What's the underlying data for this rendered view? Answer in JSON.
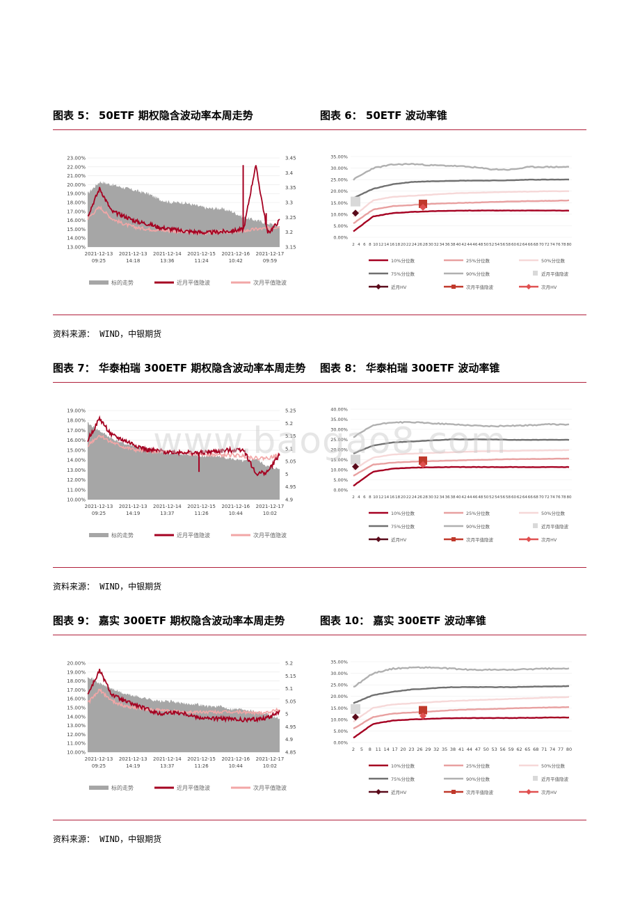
{
  "sections": [
    {
      "left_title": "图表 5：  50ETF 期权隐含波动率本周走势",
      "right_title": "图表 6：  50ETF 波动率锥",
      "source": "资料来源：  WIND，中银期货"
    },
    {
      "left_title": "图表 7：  华泰柏瑞 300ETF 期权隐含波动率本周走势",
      "right_title": "图表 8：  华泰柏瑞 300ETF 波动率锥",
      "source": "资料来源：  WIND，中银期货"
    },
    {
      "left_title": "图表 9：  嘉实 300ETF 期权隐含波动率本周走势",
      "right_title": "图表 10：  嘉实 300ETF 波动率锥",
      "source": "资料来源：  WIND，中银期货"
    }
  ],
  "watermark": "www.baogao8.com",
  "colors": {
    "rule": "#b01e3a",
    "underlying": "#a6a6a6",
    "near_iv": "#a50021",
    "next_iv": "#f2a6a6",
    "p10": "#a50021",
    "p25": "#e8a0a0",
    "p50": "#f6d8d8",
    "p75": "#707070",
    "p90": "#b0b0b0",
    "near_hv": "#5a0a1a",
    "next_atm": "#c0392b"
  },
  "chart_data": [
    {
      "type": "line",
      "x_ticks": [
        [
          "2021-12-13",
          "09:25"
        ],
        [
          "2021-12-13",
          "14:18"
        ],
        [
          "2021-12-14",
          "13:36"
        ],
        [
          "2021-12-15",
          "11:24"
        ],
        [
          "2021-12-16",
          "10:42"
        ],
        [
          "2021-12-17",
          "09:59"
        ]
      ],
      "y_left": {
        "ticks": [
          "13.00%",
          "14.00%",
          "15.00%",
          "16.00%",
          "17.00%",
          "18.00%",
          "19.00%",
          "20.00%",
          "21.00%",
          "22.00%",
          "23.00%"
        ],
        "min": 13,
        "max": 23
      },
      "y_right": {
        "ticks": [
          "3.15",
          "3.2",
          "3.25",
          "3.3",
          "3.35",
          "3.4",
          "3.45"
        ],
        "min": 3.15,
        "max": 3.45
      },
      "legend": [
        "标的走势",
        "近月平值隐波",
        "次月平值隐波"
      ],
      "underlying": [
        3.33,
        3.37,
        3.36,
        3.35,
        3.34,
        3.33,
        3.31,
        3.3,
        3.3,
        3.29,
        3.28,
        3.28,
        3.27,
        3.25,
        3.24,
        3.23,
        3.22
      ],
      "near_iv": [
        16.5,
        19.6,
        17.0,
        16.5,
        15.9,
        15.6,
        15.2,
        15.0,
        14.8,
        14.7,
        14.6,
        14.7,
        14.8,
        15.0,
        22.2,
        14.5,
        16.0
      ],
      "next_iv": [
        16.2,
        17.5,
        16.2,
        15.6,
        15.2,
        15.0,
        14.9,
        14.8,
        14.7,
        14.6,
        14.6,
        14.7,
        14.7,
        14.8,
        15.0,
        15.1,
        15.3
      ],
      "spikes": [
        {
          "pos": 0.81,
          "value": 22.2
        },
        {
          "pos": 0.93,
          "value": 16.8
        }
      ]
    },
    {
      "type": "line",
      "x_ticks": [
        "2",
        "4",
        "6",
        "8",
        "10",
        "12",
        "14",
        "16",
        "18",
        "20",
        "22",
        "24",
        "26",
        "28",
        "30",
        "32",
        "34",
        "36",
        "38",
        "40",
        "42",
        "44",
        "46",
        "48",
        "50",
        "52",
        "54",
        "56",
        "58",
        "60",
        "62",
        "64",
        "66",
        "68",
        "70",
        "72",
        "74",
        "76",
        "78",
        "80"
      ],
      "y": {
        "ticks": [
          "0.00%",
          "5.00%",
          "10.00%",
          "15.00%",
          "20.00%",
          "25.00%",
          "30.00%",
          "35.00%"
        ],
        "min": 0,
        "max": 35
      },
      "legend": [
        "10%分位数",
        "25%分位数",
        "50%分位数",
        "75%分位数",
        "90%分位数",
        "近月平值隐波",
        "近月HV",
        "次月平值隐波",
        "次月HV"
      ],
      "percentiles": {
        "p10": [
          2.5,
          9,
          10.5,
          11.0,
          11.3,
          11.5,
          11.6,
          11.6,
          11.6,
          11.6,
          11.6,
          11.6
        ],
        "p25": [
          6,
          12,
          13.5,
          14.0,
          14.5,
          14.8,
          15.0,
          15.3,
          15.5,
          15.7,
          15.8,
          16.0
        ],
        "p50": [
          9,
          16,
          17.5,
          18.0,
          18.5,
          19.0,
          19.3,
          19.5,
          19.7,
          19.8,
          20.0,
          20.0
        ],
        "p75": [
          17,
          21,
          23,
          24,
          24.3,
          24.5,
          24.6,
          24.6,
          24.7,
          25.0,
          25.0,
          25.0
        ],
        "p90": [
          25,
          30,
          31.5,
          31.8,
          31.2,
          31.0,
          30.5,
          29.5,
          29.3,
          30.5,
          30.5,
          30.5
        ]
      },
      "near_atm": 15.5,
      "near_hv": 10.5,
      "next_atm": 14.5,
      "next_hv": 13.0
    },
    {
      "type": "line",
      "x_ticks": [
        [
          "2021-12-13",
          "09:25"
        ],
        [
          "2021-12-13",
          "14:19"
        ],
        [
          "2021-12-14",
          "13:37"
        ],
        [
          "2021-12-15",
          "11:26"
        ],
        [
          "2021-12-16",
          "10:44"
        ],
        [
          "2021-12-17",
          "10:02"
        ]
      ],
      "y_left": {
        "ticks": [
          "10.00%",
          "11.00%",
          "12.00%",
          "13.00%",
          "14.00%",
          "15.00%",
          "16.00%",
          "17.00%",
          "18.00%",
          "19.00%"
        ],
        "min": 10,
        "max": 19
      },
      "y_right": {
        "ticks": [
          "4.9",
          "4.95",
          "5",
          "5.05",
          "5.1",
          "5.15",
          "5.2",
          "5.25"
        ],
        "min": 4.9,
        "max": 5.25
      },
      "legend": [
        "标的走势",
        "近月平值隐波",
        "次月平值隐波"
      ],
      "underlying": [
        5.2,
        5.17,
        5.14,
        5.12,
        5.11,
        5.1,
        5.09,
        5.08,
        5.08,
        5.07,
        5.07,
        5.07,
        5.06,
        5.05,
        5.06,
        5.03,
        5.02
      ],
      "near_iv": [
        16.0,
        18.2,
        16.5,
        16.0,
        15.5,
        15.0,
        14.9,
        14.8,
        14.8,
        14.7,
        14.8,
        14.9,
        15.0,
        15.1,
        12.6,
        12.8,
        14.6
      ],
      "next_iv": [
        15.5,
        16.5,
        15.8,
        15.3,
        15.0,
        14.9,
        14.8,
        14.8,
        14.7,
        14.6,
        14.6,
        14.5,
        14.5,
        14.4,
        14.2,
        14.2,
        14.5
      ],
      "spikes": [
        {
          "pos": 0.58,
          "value": 12.8
        }
      ]
    },
    {
      "type": "line",
      "x_ticks": [
        "2",
        "4",
        "6",
        "8",
        "10",
        "12",
        "14",
        "16",
        "18",
        "20",
        "22",
        "24",
        "26",
        "28",
        "30",
        "32",
        "34",
        "36",
        "38",
        "40",
        "42",
        "44",
        "46",
        "48",
        "50",
        "52",
        "54",
        "56",
        "58",
        "60",
        "62",
        "64",
        "66",
        "68",
        "70",
        "72",
        "74",
        "76",
        "78",
        "80"
      ],
      "y": {
        "ticks": [
          "0.00%",
          "5.00%",
          "10.00%",
          "15.00%",
          "20.00%",
          "25.00%",
          "30.00%",
          "35.00%",
          "40.00%"
        ],
        "min": 0,
        "max": 40
      },
      "legend": [
        "10%分位数",
        "25%分位数",
        "50%分位数",
        "75%分位数",
        "90%分位数",
        "近月平值隐波",
        "近月HV",
        "次月平值隐波",
        "次月HV"
      ],
      "percentiles": {
        "p10": [
          2,
          9,
          10.5,
          11,
          11.2,
          11.3,
          11.3,
          11.3,
          11.3,
          11.3,
          11.3,
          11.3
        ],
        "p25": [
          7,
          12.5,
          13.5,
          14,
          14.3,
          14.5,
          14.8,
          15,
          15.2,
          15.3,
          15.4,
          15.5
        ],
        "p50": [
          10,
          16,
          17.5,
          18,
          18.3,
          18.6,
          19,
          19.2,
          19.3,
          19.5,
          19.6,
          19.7
        ],
        "p75": [
          18,
          22,
          23.5,
          24,
          24.5,
          25,
          25,
          25,
          24.8,
          24.8,
          24.8,
          24.8
        ],
        "p90": [
          26,
          32,
          33.5,
          33.5,
          33.0,
          32.5,
          32.0,
          31.5,
          31.8,
          32.0,
          32.5,
          32.3
        ]
      },
      "near_atm": 15,
      "near_hv": 11.5,
      "next_atm": 14.5,
      "next_hv": 12.5
    },
    {
      "type": "line",
      "x_ticks": [
        [
          "2021-12-13",
          "09:25"
        ],
        [
          "2021-12-13",
          "14:19"
        ],
        [
          "2021-12-14",
          "13:37"
        ],
        [
          "2021-12-15",
          "11:26"
        ],
        [
          "2021-12-16",
          "10:44"
        ],
        [
          "2021-12-17",
          "10:02"
        ]
      ],
      "y_left": {
        "ticks": [
          "10.00%",
          "11.00%",
          "12.00%",
          "13.00%",
          "14.00%",
          "15.00%",
          "16.00%",
          "17.00%",
          "18.00%",
          "19.00%",
          "20.00%"
        ],
        "min": 10,
        "max": 20
      },
      "y_right": {
        "ticks": [
          "4.85",
          "4.9",
          "4.95",
          "5",
          "5.05",
          "5.1",
          "5.15",
          "5.2"
        ],
        "min": 4.85,
        "max": 5.2
      },
      "legend": [
        "标的走势",
        "近月平值隐波",
        "次月平值隐波"
      ],
      "underlying": [
        5.15,
        5.12,
        5.1,
        5.08,
        5.07,
        5.06,
        5.05,
        5.05,
        5.04,
        5.04,
        5.03,
        5.03,
        5.02,
        5.02,
        5.01,
        5.0,
        4.98
      ],
      "near_iv": [
        16.5,
        19.2,
        16.5,
        15.8,
        15.3,
        14.8,
        14.3,
        14.5,
        14.4,
        14.0,
        13.8,
        13.8,
        13.7,
        13.6,
        13.7,
        13.9,
        14.5
      ],
      "next_iv": [
        15.5,
        17.0,
        15.8,
        15.2,
        15.0,
        14.8,
        14.7,
        14.6,
        14.5,
        14.5,
        14.5,
        14.5,
        14.5,
        14.5,
        14.4,
        14.5,
        14.8
      ],
      "spikes": []
    },
    {
      "type": "line",
      "x_ticks": [
        "2",
        "5",
        "8",
        "11",
        "14",
        "17",
        "20",
        "23",
        "26",
        "29",
        "32",
        "35",
        "38",
        "41",
        "44",
        "47",
        "50",
        "53",
        "56",
        "59",
        "62",
        "65",
        "68",
        "71",
        "74",
        "77",
        "80"
      ],
      "y": {
        "ticks": [
          "0.00%",
          "5.00%",
          "10.00%",
          "15.00%",
          "20.00%",
          "25.00%",
          "30.00%",
          "35.00%"
        ],
        "min": 0,
        "max": 35
      },
      "legend": [
        "10%分位数",
        "25%分位数",
        "50%分位数",
        "75%分位数",
        "90%分位数",
        "近月平值隐波",
        "近月HV",
        "次月平值隐波",
        "次月HV"
      ],
      "percentiles": {
        "p10": [
          2,
          8,
          9.5,
          10,
          10.3,
          10.5,
          10.6,
          10.6,
          10.6,
          10.7,
          10.8,
          10.8
        ],
        "p25": [
          6,
          11,
          12.5,
          13,
          13.5,
          14,
          14.3,
          14.5,
          14.8,
          15,
          15.2,
          15.3
        ],
        "p50": [
          9,
          15,
          16.5,
          17,
          17.5,
          18,
          18.3,
          18.6,
          18.9,
          19.2,
          19.5,
          19.7
        ],
        "p75": [
          17,
          20.5,
          22,
          23,
          23.5,
          24,
          24,
          24,
          24,
          24.2,
          24.3,
          24.4
        ],
        "p90": [
          24,
          30,
          32,
          32.5,
          32.5,
          32,
          31.5,
          31.5,
          31.5,
          31.8,
          32,
          32
        ]
      },
      "near_atm": 14.5,
      "near_hv": 11,
      "next_atm": 14,
      "next_hv": 11.5
    }
  ]
}
